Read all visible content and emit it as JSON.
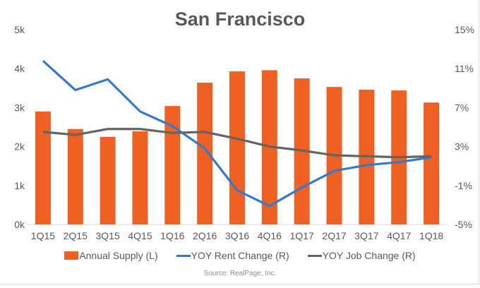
{
  "chart_data": {
    "type": "bar+line",
    "title": "San Francisco",
    "categories": [
      "1Q15",
      "2Q15",
      "3Q15",
      "4Q15",
      "1Q16",
      "2Q16",
      "3Q16",
      "4Q16",
      "1Q17",
      "2Q17",
      "3Q17",
      "4Q17",
      "1Q18"
    ],
    "left_axis": {
      "ylim": [
        0,
        5000
      ],
      "ticks": [
        "0k",
        "1k",
        "2k",
        "3k",
        "4k",
        "5k"
      ],
      "tick_values": [
        0,
        1000,
        2000,
        3000,
        4000,
        5000
      ]
    },
    "right_axis": {
      "ylim": [
        -5,
        15
      ],
      "ticks": [
        "-5%",
        "-1%",
        "3%",
        "7%",
        "11%",
        "15%"
      ],
      "tick_values": [
        -5,
        -1,
        3,
        7,
        11,
        15
      ]
    },
    "series": [
      {
        "name": "Annual Supply (L)",
        "type": "bar",
        "axis": "left",
        "color": "#ee6123",
        "values": [
          2900,
          2450,
          2250,
          2390,
          3040,
          3640,
          3930,
          3960,
          3750,
          3530,
          3460,
          3440,
          3130
        ]
      },
      {
        "name": "YOY Rent Change (R)",
        "type": "line",
        "axis": "right",
        "color": "#3479cf",
        "values": [
          11.8,
          8.8,
          9.9,
          6.6,
          5.1,
          2.8,
          -1.5,
          -3.1,
          -1.2,
          0.5,
          1.1,
          1.4,
          1.9
        ]
      },
      {
        "name": "YOY Job Change (R)",
        "type": "line",
        "axis": "right",
        "color": "#646464",
        "values": [
          4.5,
          4.2,
          4.8,
          4.8,
          4.4,
          4.5,
          3.8,
          3.0,
          2.6,
          2.1,
          2.0,
          1.9,
          2.0
        ]
      }
    ],
    "grid": false,
    "legend": "bottom",
    "source": "Source: RealPage, Inc."
  }
}
